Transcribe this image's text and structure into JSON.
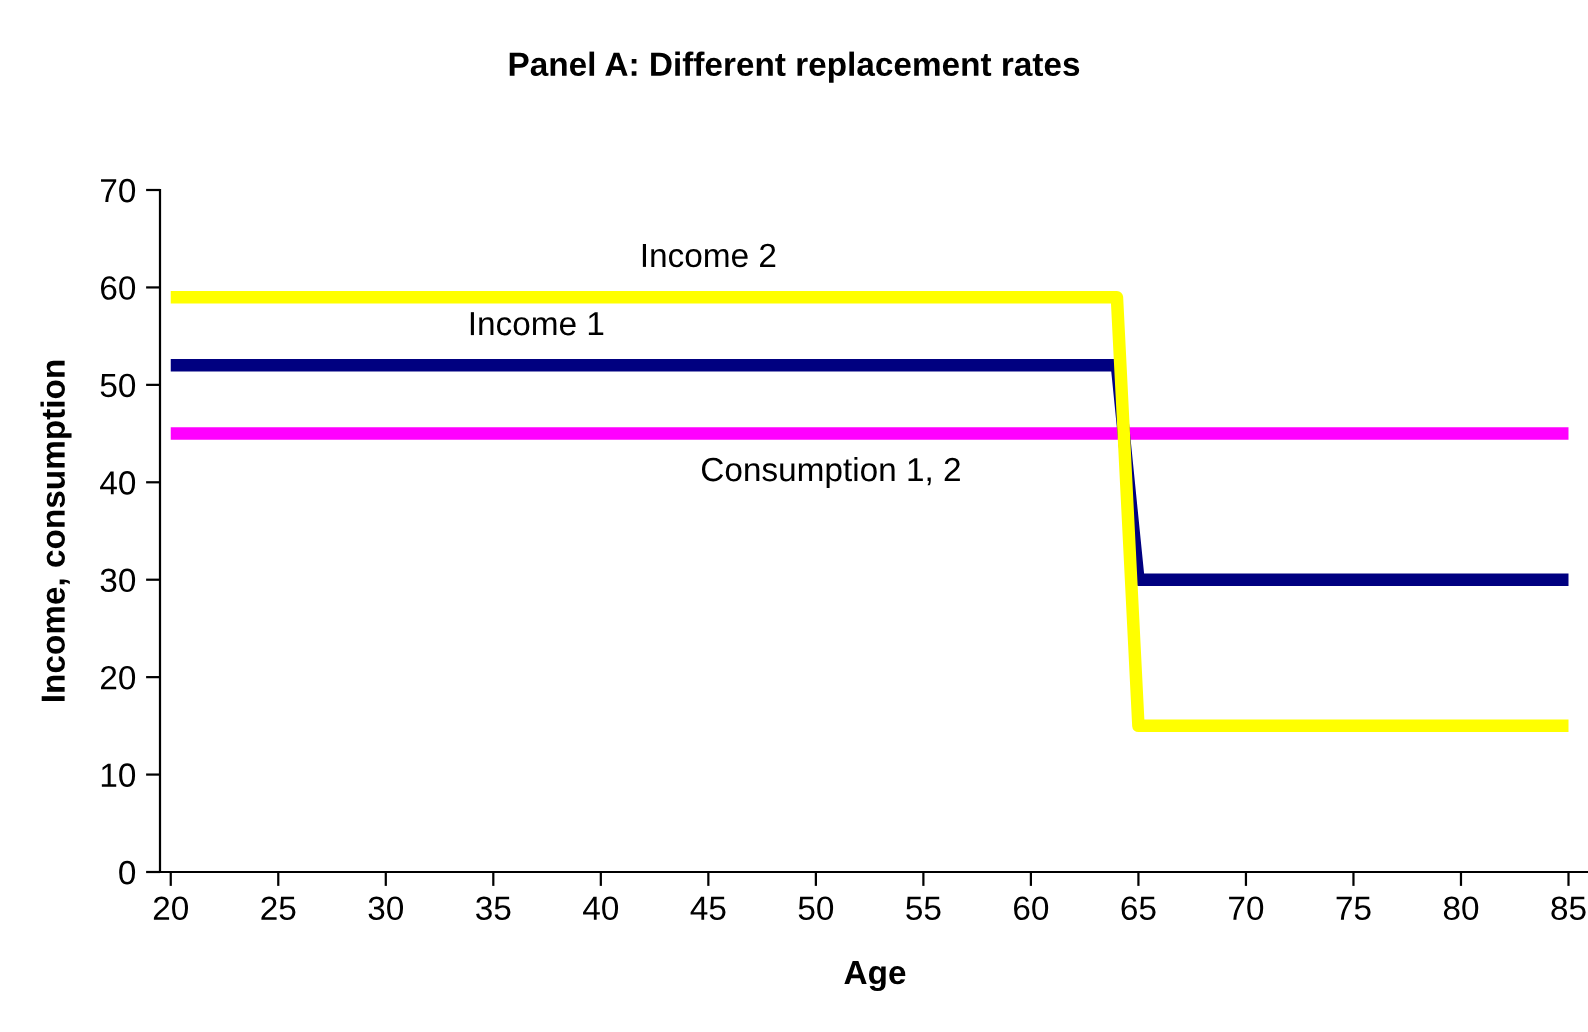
{
  "chart_data": {
    "type": "line",
    "title": "Panel A: Different replacement rates",
    "xlabel": "Age",
    "ylabel": "Income, consumption",
    "xlim": [
      19.5,
      86
    ],
    "xticks": [
      20,
      25,
      30,
      35,
      40,
      45,
      50,
      55,
      60,
      65,
      70,
      75,
      80,
      85
    ],
    "ylim": [
      0,
      70
    ],
    "yticks": [
      0,
      10,
      20,
      30,
      40,
      50,
      60,
      70
    ],
    "grid": false,
    "legend": false,
    "marker": "none",
    "line_style": "solid",
    "series": [
      {
        "color": "#ff00ff",
        "x": [
          20,
          85
        ],
        "values": [
          45,
          45
        ]
      },
      {
        "color": "#000080",
        "x": [
          20,
          64,
          65,
          85
        ],
        "values": [
          52,
          52,
          30,
          30
        ]
      },
      {
        "color": "#ffff00",
        "x": [
          20,
          64,
          65,
          85
        ],
        "values": [
          59,
          59,
          15,
          15
        ]
      }
    ],
    "annotations": [
      {
        "text": "Income 2",
        "x": 45,
        "y": 59
      },
      {
        "text": "Income 1",
        "x": 37,
        "y": 52
      },
      {
        "text": "Consumption 1, 2",
        "x": 50.7,
        "y": 45
      }
    ]
  }
}
